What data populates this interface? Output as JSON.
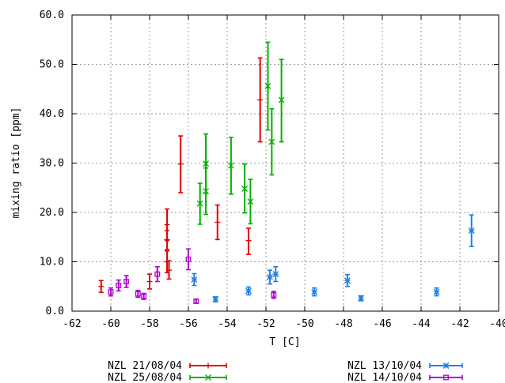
{
  "chart_data": {
    "type": "scatter",
    "title": "",
    "xlabel": "T [C]",
    "ylabel": "mixing ratio [ppm]",
    "xlim": [
      -62,
      -40
    ],
    "ylim": [
      0,
      60
    ],
    "xticks": [
      -62,
      -60,
      -58,
      -56,
      -54,
      -52,
      -50,
      -48,
      -46,
      -44,
      -42,
      -40
    ],
    "xtick_labels": [
      "-62",
      "-60",
      "-58",
      "-56",
      "-54",
      "-52",
      "-50",
      "-48",
      "-46",
      "-44",
      "-42",
      "-40"
    ],
    "yticks": [
      0,
      10,
      20,
      30,
      40,
      50,
      60
    ],
    "ytick_labels": [
      "0.0",
      "10.0",
      "20.0",
      "30.0",
      "40.0",
      "50.0",
      "60.0"
    ],
    "grid": true,
    "legend_position": "bottom",
    "series": [
      {
        "name": "NZL 21/08/04",
        "color": "#e00000",
        "marker": "plus",
        "points": [
          {
            "x": -60.5,
            "y": 5.0,
            "ylow": 3.8,
            "yhigh": 6.2
          },
          {
            "x": -58.0,
            "y": 6.0,
            "ylow": 4.5,
            "yhigh": 7.5
          },
          {
            "x": -57.1,
            "y": 17.5,
            "ylow": 14.3,
            "yhigh": 20.7
          },
          {
            "x": -57.1,
            "y": 14.5,
            "ylow": 12.5,
            "yhigh": 16.3
          },
          {
            "x": -57.1,
            "y": 10.0,
            "ylow": 7.8,
            "yhigh": 12.2
          },
          {
            "x": -57.0,
            "y": 8.3,
            "ylow": 6.5,
            "yhigh": 10.2
          },
          {
            "x": -56.4,
            "y": 29.8,
            "ylow": 24.0,
            "yhigh": 35.5
          },
          {
            "x": -54.5,
            "y": 18.0,
            "ylow": 14.5,
            "yhigh": 21.5
          },
          {
            "x": -52.9,
            "y": 14.3,
            "ylow": 11.5,
            "yhigh": 16.8
          },
          {
            "x": -52.3,
            "y": 42.8,
            "ylow": 34.3,
            "yhigh": 51.3
          }
        ]
      },
      {
        "name": "NZL 25/08/04",
        "color": "#00b000",
        "marker": "x",
        "points": [
          {
            "x": -55.4,
            "y": 21.8,
            "ylow": 17.6,
            "yhigh": 25.9
          },
          {
            "x": -55.1,
            "y": 29.9,
            "ylow": 23.9,
            "yhigh": 35.9
          },
          {
            "x": -55.1,
            "y": 24.3,
            "ylow": 19.6,
            "yhigh": 29.0
          },
          {
            "x": -53.8,
            "y": 29.5,
            "ylow": 23.7,
            "yhigh": 35.2
          },
          {
            "x": -53.1,
            "y": 24.8,
            "ylow": 19.9,
            "yhigh": 29.8
          },
          {
            "x": -52.8,
            "y": 22.2,
            "ylow": 17.7,
            "yhigh": 26.7
          },
          {
            "x": -51.9,
            "y": 45.6,
            "ylow": 36.7,
            "yhigh": 54.5
          },
          {
            "x": -51.7,
            "y": 34.3,
            "ylow": 27.6,
            "yhigh": 41.0
          },
          {
            "x": -51.2,
            "y": 42.8,
            "ylow": 34.3,
            "yhigh": 51.0
          }
        ]
      },
      {
        "name": "NZL 13/10/04",
        "color": "#2080e0",
        "marker": "star",
        "points": [
          {
            "x": -55.7,
            "y": 6.4,
            "ylow": 5.2,
            "yhigh": 7.6
          },
          {
            "x": -54.6,
            "y": 2.4,
            "ylow": 1.9,
            "yhigh": 2.9
          },
          {
            "x": -52.9,
            "y": 4.1,
            "ylow": 3.3,
            "yhigh": 4.9
          },
          {
            "x": -51.8,
            "y": 6.9,
            "ylow": 5.5,
            "yhigh": 8.3
          },
          {
            "x": -51.5,
            "y": 7.5,
            "ylow": 6.0,
            "yhigh": 9.0
          },
          {
            "x": -49.5,
            "y": 3.9,
            "ylow": 3.1,
            "yhigh": 4.7
          },
          {
            "x": -47.8,
            "y": 6.2,
            "ylow": 5.0,
            "yhigh": 7.4
          },
          {
            "x": -47.1,
            "y": 2.6,
            "ylow": 2.1,
            "yhigh": 3.1
          },
          {
            "x": -43.2,
            "y": 3.9,
            "ylow": 3.1,
            "yhigh": 4.7
          },
          {
            "x": -41.4,
            "y": 16.3,
            "ylow": 13.1,
            "yhigh": 19.5
          }
        ]
      },
      {
        "name": "NZL 14/10/04",
        "color": "#b000d0",
        "marker": "square",
        "points": [
          {
            "x": -60.0,
            "y": 3.9,
            "ylow": 3.1,
            "yhigh": 4.7
          },
          {
            "x": -59.6,
            "y": 5.2,
            "ylow": 4.1,
            "yhigh": 6.3
          },
          {
            "x": -59.2,
            "y": 6.0,
            "ylow": 4.8,
            "yhigh": 7.2
          },
          {
            "x": -58.6,
            "y": 3.5,
            "ylow": 2.8,
            "yhigh": 4.2
          },
          {
            "x": -58.3,
            "y": 3.0,
            "ylow": 2.4,
            "yhigh": 3.6
          },
          {
            "x": -57.6,
            "y": 7.5,
            "ylow": 6.0,
            "yhigh": 9.0
          },
          {
            "x": -56.0,
            "y": 10.5,
            "ylow": 8.4,
            "yhigh": 12.6
          },
          {
            "x": -55.6,
            "y": 2.0,
            "ylow": 1.6,
            "yhigh": 2.4
          },
          {
            "x": -51.6,
            "y": 3.3,
            "ylow": 2.6,
            "yhigh": 4.0
          }
        ]
      }
    ]
  }
}
